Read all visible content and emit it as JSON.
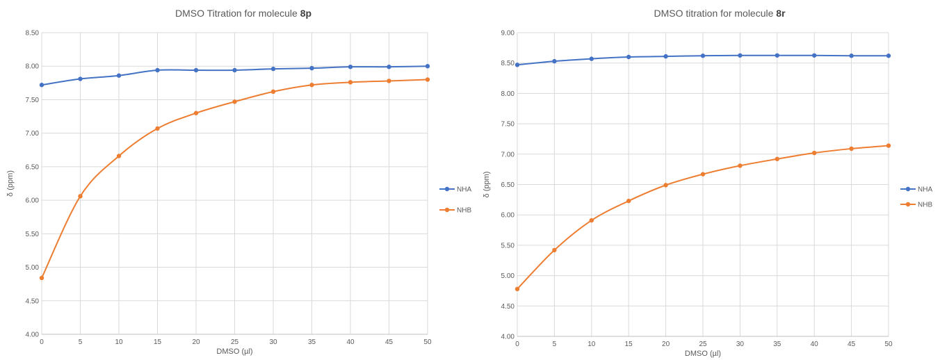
{
  "chart_data": [
    {
      "type": "line",
      "title": "DMSO Titration for molecule ",
      "title_bold": "8p",
      "xlabel": "DMSO (µl)",
      "ylabel": "δ (ppm)",
      "xlim": [
        0,
        50
      ],
      "ylim": [
        4.0,
        8.5
      ],
      "x_ticks": [
        0,
        5,
        10,
        15,
        20,
        25,
        30,
        35,
        40,
        45,
        50
      ],
      "y_ticks": [
        "4.00",
        "4.50",
        "5.00",
        "5.50",
        "6.00",
        "6.50",
        "7.00",
        "7.50",
        "8.00",
        "8.50"
      ],
      "grid": true,
      "legend_position": "right",
      "x": [
        0,
        5,
        10,
        15,
        20,
        25,
        30,
        35,
        40,
        45,
        50
      ],
      "series": [
        {
          "name": "NHA",
          "color": "#4472c4",
          "values": [
            7.72,
            7.81,
            7.86,
            7.94,
            7.94,
            7.94,
            7.96,
            7.97,
            7.99,
            7.99,
            8.0
          ]
        },
        {
          "name": "NHB",
          "color": "#ed7d31",
          "values": [
            4.84,
            6.06,
            6.66,
            7.07,
            7.3,
            7.47,
            7.62,
            7.72,
            7.76,
            7.78,
            7.8
          ]
        }
      ]
    },
    {
      "type": "line",
      "title": "DMSO titration for molecule ",
      "title_bold": "8r",
      "xlabel": "DMSO (µl)",
      "ylabel": "δ (ppm)",
      "xlim": [
        0,
        50
      ],
      "ylim": [
        4.0,
        9.0
      ],
      "x_ticks": [
        0,
        5,
        10,
        15,
        20,
        25,
        30,
        35,
        40,
        45,
        50
      ],
      "y_ticks": [
        "4.00",
        "4.50",
        "5.00",
        "5.50",
        "6.00",
        "6.50",
        "7.00",
        "7.50",
        "8.00",
        "8.50",
        "9.00"
      ],
      "grid": true,
      "legend_position": "right",
      "x": [
        0,
        5,
        10,
        15,
        20,
        25,
        30,
        35,
        40,
        45,
        50
      ],
      "series": [
        {
          "name": "NHA",
          "color": "#4472c4",
          "values": [
            8.47,
            8.53,
            8.57,
            8.6,
            8.61,
            8.62,
            8.625,
            8.625,
            8.625,
            8.62,
            8.62
          ]
        },
        {
          "name": "NHB",
          "color": "#ed7d31",
          "values": [
            4.78,
            5.42,
            5.91,
            6.23,
            6.49,
            6.67,
            6.81,
            6.92,
            7.02,
            7.09,
            7.14
          ]
        }
      ]
    }
  ]
}
